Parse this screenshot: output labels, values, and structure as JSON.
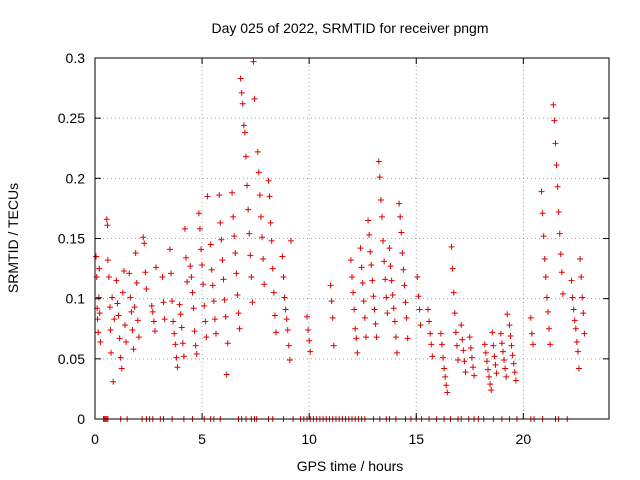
{
  "chart_data": {
    "type": "scatter",
    "title": "Day 025 of 2022, SRMTID for receiver pngm",
    "xlabel": "GPS time / hours",
    "ylabel": "SRMTID / TECUs",
    "xlim": [
      0,
      24
    ],
    "ylim": [
      0,
      0.3
    ],
    "xticks": [
      0,
      5,
      10,
      15,
      20
    ],
    "xtick_labels": [
      "0",
      "5",
      "10",
      "15",
      "20"
    ],
    "yticks": [
      0,
      0.05,
      0.1,
      0.15,
      0.2,
      0.25,
      0.3
    ],
    "ytick_labels": [
      "0",
      "0.05",
      "0.1",
      "0.15",
      "0.2",
      "0.25",
      "0.3"
    ],
    "grid": true,
    "marker": "plus",
    "color": "#e00000",
    "series": [
      {
        "name": "SRMTID",
        "points": [
          [
            0.05,
            0.135
          ],
          [
            0.08,
            0.118
          ],
          [
            0.1,
            0.092
          ],
          [
            0.12,
            0.083
          ],
          [
            0.15,
            0.072
          ],
          [
            0.18,
            0.101
          ],
          [
            0.2,
            0.125
          ],
          [
            0.22,
            0.088
          ],
          [
            0.25,
            0.064
          ],
          [
            0.55,
            0.166
          ],
          [
            0.58,
            0.161
          ],
          [
            0.6,
            0.132
          ],
          [
            0.65,
            0.118
          ],
          [
            0.7,
            0.093
          ],
          [
            0.72,
            0.074
          ],
          [
            0.75,
            0.055
          ],
          [
            0.8,
            0.101
          ],
          [
            0.85,
            0.031
          ],
          [
            0.9,
            0.083
          ],
          [
            1.0,
            0.115
          ],
          [
            1.05,
            0.096
          ],
          [
            1.1,
            0.086
          ],
          [
            1.15,
            0.067
          ],
          [
            1.2,
            0.051
          ],
          [
            1.25,
            0.042
          ],
          [
            1.3,
            0.105
          ],
          [
            1.35,
            0.123
          ],
          [
            1.4,
            0.078
          ],
          [
            1.45,
            0.064
          ],
          [
            1.6,
            0.121
          ],
          [
            1.65,
            0.101
          ],
          [
            1.7,
            0.089
          ],
          [
            1.75,
            0.074
          ],
          [
            1.8,
            0.058
          ],
          [
            1.85,
            0.093
          ],
          [
            1.9,
            0.138
          ],
          [
            1.95,
            0.113
          ],
          [
            2.0,
            0.082
          ],
          [
            2.05,
            0.068
          ],
          [
            2.25,
            0.151
          ],
          [
            2.3,
            0.146
          ],
          [
            2.35,
            0.122
          ],
          [
            2.4,
            0.108
          ],
          [
            2.65,
            0.094
          ],
          [
            2.7,
            0.089
          ],
          [
            2.75,
            0.081
          ],
          [
            2.8,
            0.073
          ],
          [
            2.85,
            0.126
          ],
          [
            3.15,
            0.118
          ],
          [
            3.2,
            0.097
          ],
          [
            3.25,
            0.083
          ],
          [
            3.5,
            0.141
          ],
          [
            3.55,
            0.121
          ],
          [
            3.6,
            0.098
          ],
          [
            3.65,
            0.081
          ],
          [
            3.7,
            0.071
          ],
          [
            3.75,
            0.062
          ],
          [
            3.8,
            0.051
          ],
          [
            3.85,
            0.043
          ],
          [
            3.95,
            0.095
          ],
          [
            4.0,
            0.087
          ],
          [
            4.05,
            0.076
          ],
          [
            4.1,
            0.063
          ],
          [
            4.15,
            0.052
          ],
          [
            4.2,
            0.158
          ],
          [
            4.25,
            0.134
          ],
          [
            4.3,
            0.114
          ],
          [
            4.45,
            0.127
          ],
          [
            4.5,
            0.118
          ],
          [
            4.55,
            0.105
          ],
          [
            4.6,
            0.092
          ],
          [
            4.65,
            0.073
          ],
          [
            4.7,
            0.061
          ],
          [
            4.75,
            0.054
          ],
          [
            4.85,
            0.171
          ],
          [
            4.9,
            0.158
          ],
          [
            4.95,
            0.141
          ],
          [
            5.0,
            0.128
          ],
          [
            5.05,
            0.112
          ],
          [
            5.1,
            0.094
          ],
          [
            5.15,
            0.081
          ],
          [
            5.2,
            0.068
          ],
          [
            5.25,
            0.185
          ],
          [
            5.4,
            0.145
          ],
          [
            5.45,
            0.124
          ],
          [
            5.5,
            0.111
          ],
          [
            5.55,
            0.098
          ],
          [
            5.6,
            0.083
          ],
          [
            5.65,
            0.071
          ],
          [
            5.8,
            0.186
          ],
          [
            5.85,
            0.163
          ],
          [
            5.9,
            0.149
          ],
          [
            5.95,
            0.132
          ],
          [
            6.0,
            0.116
          ],
          [
            6.05,
            0.099
          ],
          [
            6.1,
            0.085
          ],
          [
            6.15,
            0.037
          ],
          [
            6.2,
            0.063
          ],
          [
            6.4,
            0.188
          ],
          [
            6.45,
            0.168
          ],
          [
            6.5,
            0.152
          ],
          [
            6.55,
            0.138
          ],
          [
            6.6,
            0.121
          ],
          [
            6.65,
            0.103
          ],
          [
            6.7,
            0.088
          ],
          [
            6.75,
            0.075
          ],
          [
            6.8,
            0.283
          ],
          [
            6.85,
            0.271
          ],
          [
            6.9,
            0.262
          ],
          [
            6.95,
            0.244
          ],
          [
            7.0,
            0.238
          ],
          [
            7.05,
            0.218
          ],
          [
            7.1,
            0.194
          ],
          [
            7.15,
            0.174
          ],
          [
            7.2,
            0.154
          ],
          [
            7.25,
            0.136
          ],
          [
            7.3,
            0.118
          ],
          [
            7.35,
            0.097
          ],
          [
            7.4,
            0.297
          ],
          [
            7.45,
            0.266
          ],
          [
            7.6,
            0.222
          ],
          [
            7.65,
            0.205
          ],
          [
            7.7,
            0.186
          ],
          [
            7.75,
            0.168
          ],
          [
            7.8,
            0.151
          ],
          [
            7.85,
            0.133
          ],
          [
            7.9,
            0.112
          ],
          [
            8.1,
            0.198
          ],
          [
            8.15,
            0.185
          ],
          [
            8.2,
            0.163
          ],
          [
            8.25,
            0.148
          ],
          [
            8.3,
            0.125
          ],
          [
            8.35,
            0.105
          ],
          [
            8.4,
            0.086
          ],
          [
            8.45,
            0.072
          ],
          [
            8.75,
            0.135
          ],
          [
            8.8,
            0.118
          ],
          [
            8.85,
            0.101
          ],
          [
            8.9,
            0.091
          ],
          [
            8.95,
            0.083
          ],
          [
            9.0,
            0.074
          ],
          [
            9.05,
            0.061
          ],
          [
            9.1,
            0.049
          ],
          [
            9.15,
            0.148
          ],
          [
            9.9,
            0.085
          ],
          [
            9.95,
            0.074
          ],
          [
            10.0,
            0.065
          ],
          [
            10.05,
            0.056
          ],
          [
            11.0,
            0.111
          ],
          [
            11.05,
            0.098
          ],
          [
            11.1,
            0.084
          ],
          [
            11.15,
            0.061
          ],
          [
            11.95,
            0.132
          ],
          [
            12.0,
            0.118
          ],
          [
            12.05,
            0.105
          ],
          [
            12.1,
            0.091
          ],
          [
            12.15,
            0.075
          ],
          [
            12.2,
            0.067
          ],
          [
            12.25,
            0.055
          ],
          [
            12.4,
            0.142
          ],
          [
            12.45,
            0.126
          ],
          [
            12.5,
            0.113
          ],
          [
            12.55,
            0.098
          ],
          [
            12.6,
            0.084
          ],
          [
            12.65,
            0.068
          ],
          [
            12.75,
            0.165
          ],
          [
            12.8,
            0.153
          ],
          [
            12.85,
            0.139
          ],
          [
            12.9,
            0.128
          ],
          [
            12.95,
            0.115
          ],
          [
            13.0,
            0.102
          ],
          [
            13.05,
            0.091
          ],
          [
            13.1,
            0.079
          ],
          [
            13.15,
            0.068
          ],
          [
            13.25,
            0.214
          ],
          [
            13.3,
            0.201
          ],
          [
            13.35,
            0.182
          ],
          [
            13.4,
            0.168
          ],
          [
            13.45,
            0.148
          ],
          [
            13.5,
            0.131
          ],
          [
            13.55,
            0.116
          ],
          [
            13.6,
            0.101
          ],
          [
            13.65,
            0.088
          ],
          [
            13.75,
            0.142
          ],
          [
            13.8,
            0.127
          ],
          [
            13.85,
            0.115
          ],
          [
            13.9,
            0.103
          ],
          [
            13.95,
            0.092
          ],
          [
            14.0,
            0.081
          ],
          [
            14.05,
            0.068
          ],
          [
            14.1,
            0.055
          ],
          [
            14.2,
            0.179
          ],
          [
            14.25,
            0.168
          ],
          [
            14.3,
            0.155
          ],
          [
            14.35,
            0.138
          ],
          [
            14.4,
            0.124
          ],
          [
            14.45,
            0.111
          ],
          [
            14.5,
            0.097
          ],
          [
            14.55,
            0.084
          ],
          [
            14.6,
            0.067
          ],
          [
            15.05,
            0.118
          ],
          [
            15.1,
            0.102
          ],
          [
            15.15,
            0.091
          ],
          [
            15.2,
            0.078
          ],
          [
            15.55,
            0.091
          ],
          [
            15.6,
            0.081
          ],
          [
            15.65,
            0.071
          ],
          [
            15.7,
            0.062
          ],
          [
            15.75,
            0.052
          ],
          [
            16.15,
            0.071
          ],
          [
            16.2,
            0.062
          ],
          [
            16.25,
            0.051
          ],
          [
            16.3,
            0.042
          ],
          [
            16.35,
            0.035
          ],
          [
            16.4,
            0.028
          ],
          [
            16.45,
            0.022
          ],
          [
            16.65,
            0.143
          ],
          [
            16.7,
            0.125
          ],
          [
            16.75,
            0.105
          ],
          [
            16.8,
            0.088
          ],
          [
            16.85,
            0.072
          ],
          [
            16.9,
            0.061
          ],
          [
            16.95,
            0.049
          ],
          [
            17.1,
            0.078
          ],
          [
            17.15,
            0.066
          ],
          [
            17.2,
            0.057
          ],
          [
            17.25,
            0.048
          ],
          [
            17.3,
            0.039
          ],
          [
            17.5,
            0.068
          ],
          [
            17.55,
            0.059
          ],
          [
            17.6,
            0.051
          ],
          [
            17.65,
            0.043
          ],
          [
            17.7,
            0.036
          ],
          [
            18.2,
            0.062
          ],
          [
            18.25,
            0.055
          ],
          [
            18.3,
            0.048
          ],
          [
            18.35,
            0.041
          ],
          [
            18.4,
            0.035
          ],
          [
            18.45,
            0.029
          ],
          [
            18.5,
            0.024
          ],
          [
            18.55,
            0.072
          ],
          [
            18.6,
            0.061
          ],
          [
            18.65,
            0.052
          ],
          [
            18.7,
            0.045
          ],
          [
            18.75,
            0.038
          ],
          [
            18.95,
            0.071
          ],
          [
            19.0,
            0.063
          ],
          [
            19.05,
            0.056
          ],
          [
            19.1,
            0.049
          ],
          [
            19.15,
            0.042
          ],
          [
            19.2,
            0.035
          ],
          [
            19.25,
            0.087
          ],
          [
            19.35,
            0.078
          ],
          [
            19.4,
            0.069
          ],
          [
            19.45,
            0.061
          ],
          [
            19.5,
            0.053
          ],
          [
            19.55,
            0.046
          ],
          [
            19.6,
            0.039
          ],
          [
            19.65,
            0.032
          ],
          [
            20.35,
            0.084
          ],
          [
            20.4,
            0.071
          ],
          [
            20.45,
            0.062
          ],
          [
            20.85,
            0.189
          ],
          [
            20.9,
            0.171
          ],
          [
            20.95,
            0.152
          ],
          [
            21.0,
            0.133
          ],
          [
            21.05,
            0.118
          ],
          [
            21.1,
            0.101
          ],
          [
            21.15,
            0.089
          ],
          [
            21.2,
            0.075
          ],
          [
            21.25,
            0.062
          ],
          [
            21.4,
            0.261
          ],
          [
            21.45,
            0.248
          ],
          [
            21.5,
            0.229
          ],
          [
            21.55,
            0.211
          ],
          [
            21.6,
            0.193
          ],
          [
            21.65,
            0.172
          ],
          [
            21.7,
            0.154
          ],
          [
            21.75,
            0.137
          ],
          [
            21.8,
            0.122
          ],
          [
            21.85,
            0.104
          ],
          [
            22.25,
            0.115
          ],
          [
            22.3,
            0.101
          ],
          [
            22.35,
            0.091
          ],
          [
            22.4,
            0.082
          ],
          [
            22.45,
            0.075
          ],
          [
            22.5,
            0.064
          ],
          [
            22.55,
            0.056
          ],
          [
            22.6,
            0.042
          ],
          [
            22.65,
            0.133
          ],
          [
            22.7,
            0.118
          ],
          [
            22.75,
            0.101
          ],
          [
            22.8,
            0.088
          ],
          [
            22.85,
            0.071
          ]
        ]
      }
    ],
    "zero_points_x": [
      0.4,
      0.45,
      0.5,
      0.55,
      0.6,
      1.2,
      1.5,
      2.2,
      2.4,
      2.55,
      2.7,
      3.05,
      3.2,
      3.6,
      4.15,
      4.55,
      5.1,
      5.4,
      5.55,
      5.85,
      6.7,
      6.85,
      7.05,
      7.3,
      7.45,
      7.55,
      8.1,
      8.3,
      8.8,
      9.25,
      9.6,
      9.75,
      9.9,
      10.05,
      10.2,
      10.35,
      10.5,
      10.65,
      10.8,
      10.95,
      11.1,
      11.25,
      11.4,
      11.55,
      11.7,
      11.85,
      12.0,
      12.15,
      12.3,
      12.45,
      12.6,
      13.0,
      13.3,
      13.6,
      13.75,
      14.05,
      14.5,
      14.75,
      15.0,
      15.25,
      15.6,
      15.95,
      16.3,
      16.6,
      16.95,
      17.1,
      17.45,
      17.7,
      17.9,
      18.15,
      18.6,
      19.0,
      19.35,
      19.7,
      20.35,
      20.5,
      20.9,
      21.5,
      21.65,
      22.05
    ]
  }
}
